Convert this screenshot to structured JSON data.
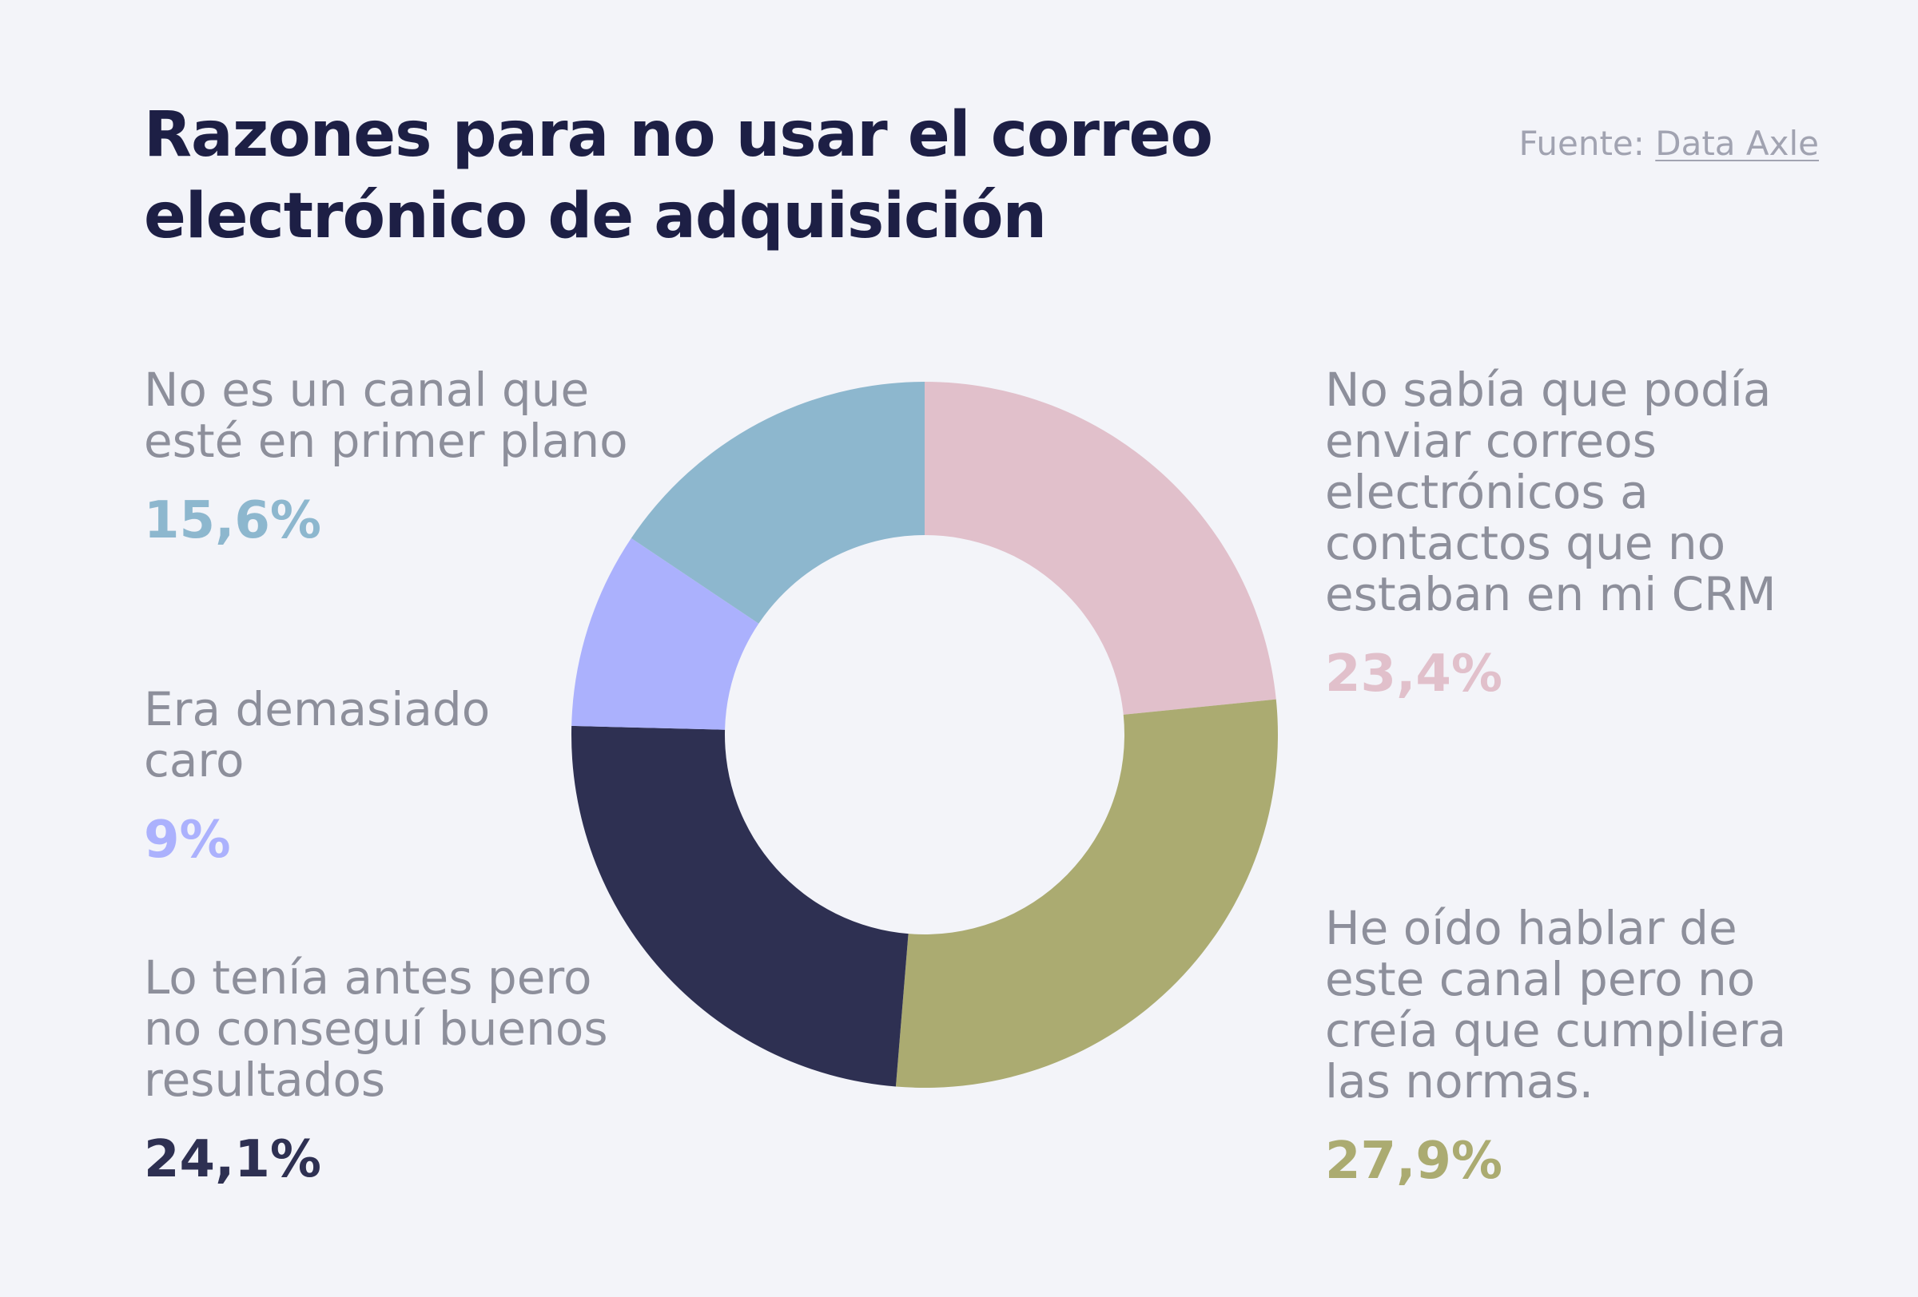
{
  "source": {
    "prefix": "Fuente:",
    "link_text": "Data Axle"
  },
  "chart_data": {
    "type": "pie",
    "donut": true,
    "title": "Razones para no usar el correo electrónico de adquisición",
    "segments": [
      {
        "label": "No sabía que podía enviar correos electrónicos a contactos que no estaban en mi CRM",
        "value": 23.4,
        "value_label": "23,4%",
        "color": "#e1c0cb"
      },
      {
        "label": "He oído hablar de este canal pero no creía que cumpliera las normas.",
        "value": 27.9,
        "value_label": "27,9%",
        "color": "#abab71"
      },
      {
        "label": "Lo tenía antes pero no conseguí buenos resultados",
        "value": 24.1,
        "value_label": "24,1%",
        "color": "#2e3052"
      },
      {
        "label": "Era demasiado caro",
        "value": 9,
        "value_label": "9%",
        "color": "#abb1fd"
      },
      {
        "label": "No es un canal que esté en primer plano",
        "value": 15.6,
        "value_label": "15,6%",
        "color": "#8db7ce"
      }
    ]
  }
}
